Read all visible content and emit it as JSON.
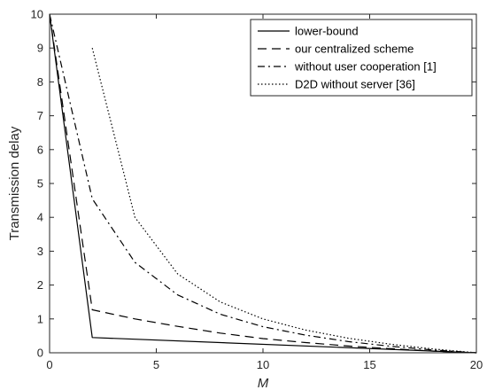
{
  "chart_data": {
    "type": "line",
    "title": "",
    "xlabel": "M",
    "ylabel": "Transmission delay",
    "xlim": [
      0,
      20
    ],
    "ylim": [
      0,
      10
    ],
    "xticks": [
      0,
      5,
      10,
      15,
      20
    ],
    "yticks": [
      0,
      1,
      2,
      3,
      4,
      5,
      6,
      7,
      8,
      9,
      10
    ],
    "grid": false,
    "legend_position": "top-right",
    "series": [
      {
        "name": "lower-bound",
        "dash": "solid",
        "color": "#000000",
        "points": [
          [
            0,
            10
          ],
          [
            2,
            0.45
          ],
          [
            20,
            0
          ]
        ]
      },
      {
        "name": "our centralized scheme",
        "dash": "dashed",
        "color": "#000000",
        "points": [
          [
            0,
            10
          ],
          [
            2,
            1.27
          ],
          [
            4,
            1.0
          ],
          [
            6,
            0.78
          ],
          [
            8,
            0.58
          ],
          [
            10,
            0.42
          ],
          [
            12,
            0.3
          ],
          [
            14,
            0.2
          ],
          [
            16,
            0.12
          ],
          [
            18,
            0.05
          ],
          [
            20,
            0
          ]
        ]
      },
      {
        "name": "without user cooperation [1]",
        "dash": "dashdot",
        "color": "#000000",
        "points": [
          [
            0,
            10
          ],
          [
            2,
            4.55
          ],
          [
            4,
            2.67
          ],
          [
            6,
            1.71
          ],
          [
            8,
            1.14
          ],
          [
            10,
            0.77
          ],
          [
            12,
            0.52
          ],
          [
            14,
            0.33
          ],
          [
            16,
            0.19
          ],
          [
            18,
            0.08
          ],
          [
            20,
            0
          ]
        ]
      },
      {
        "name": "D2D without server [36]",
        "dash": "dotted",
        "color": "#000000",
        "points": [
          [
            2,
            9.0
          ],
          [
            4,
            4.0
          ],
          [
            6,
            2.33
          ],
          [
            8,
            1.5
          ],
          [
            10,
            1.0
          ],
          [
            12,
            0.67
          ],
          [
            14,
            0.43
          ],
          [
            16,
            0.25
          ],
          [
            18,
            0.11
          ],
          [
            20,
            0
          ]
        ]
      }
    ]
  }
}
